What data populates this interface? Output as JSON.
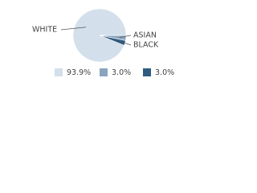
{
  "chart_data": {
    "type": "pie",
    "categories": [
      "WHITE",
      "ASIAN",
      "BLACK"
    ],
    "values": [
      93.9,
      3.0,
      3.0
    ],
    "value_labels": [
      "93.9%",
      "3.0%",
      "3.0%"
    ],
    "colors": [
      "#d3dfea",
      "#8aa4bd",
      "#2f5b80"
    ]
  }
}
